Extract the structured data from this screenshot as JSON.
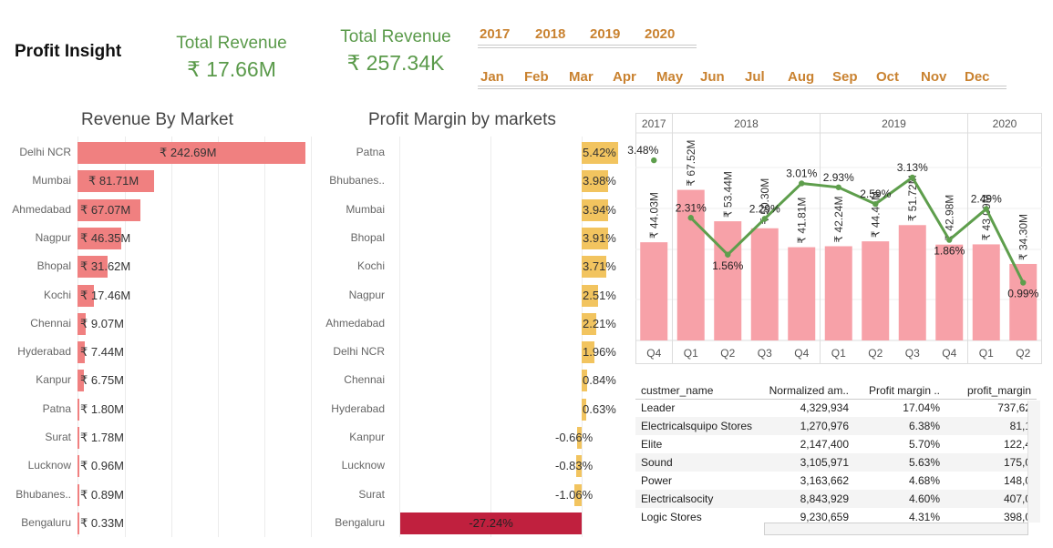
{
  "header": {
    "title": "Profit Insight",
    "kpis": [
      {
        "label": "Total Revenue",
        "value": "₹ 17.66M"
      },
      {
        "label": "Total Revenue",
        "value": "₹ 257.34K"
      }
    ]
  },
  "filters": {
    "years": [
      "2017",
      "2018",
      "2019",
      "2020"
    ],
    "months": [
      "Jan",
      "Feb",
      "Mar",
      "Apr",
      "May",
      "Jun",
      "Jul",
      "Aug",
      "Sep",
      "Oct",
      "Nov",
      "Dec"
    ]
  },
  "revenue_by_market": {
    "title": "Revenue By Market",
    "color": "#f08080",
    "markets": [
      "Delhi NCR",
      "Mumbai",
      "Ahmedabad",
      "Nagpur",
      "Bhopal",
      "Kochi",
      "Chennai",
      "Hyderabad",
      "Kanpur",
      "Patna",
      "Surat",
      "Lucknow",
      "Bhubanes..",
      "Bengaluru"
    ],
    "values": [
      242.69,
      81.71,
      67.07,
      46.35,
      31.62,
      17.46,
      9.07,
      7.44,
      6.75,
      1.8,
      1.78,
      0.96,
      0.89,
      0.33
    ],
    "labels": [
      "₹ 242.69M",
      "₹ 81.71M",
      "₹ 67.07M",
      "₹ 46.35M",
      "₹ 31.62M",
      "₹ 17.46M",
      "₹ 9.07M",
      "₹ 7.44M",
      "₹ 6.75M",
      "₹ 1.80M",
      "₹ 1.78M",
      "₹ 0.96M",
      "₹ 0.89M",
      "₹ 0.33M"
    ]
  },
  "profit_margin_by_markets": {
    "title": "Profit Margin by markets",
    "positive_color": "#f2c45f",
    "negative_color": "#c0203e",
    "markets": [
      "Patna",
      "Bhubanes..",
      "Mumbai",
      "Bhopal",
      "Kochi",
      "Nagpur",
      "Ahmedabad",
      "Delhi NCR",
      "Chennai",
      "Hyderabad",
      "Kanpur",
      "Lucknow",
      "Surat",
      "Bengaluru"
    ],
    "values": [
      5.42,
      3.98,
      3.94,
      3.91,
      3.71,
      2.51,
      2.21,
      1.96,
      0.84,
      0.63,
      -0.66,
      -0.83,
      -1.06,
      -27.24
    ],
    "labels": [
      "5.42%",
      "3.98%",
      "3.94%",
      "3.91%",
      "3.71%",
      "2.51%",
      "2.21%",
      "1.96%",
      "0.84%",
      "0.63%",
      "-0.66%",
      "-0.83%",
      "-1.06%",
      "-27.24%"
    ]
  },
  "combo_chart": {
    "bar_color": "#f7a1a8",
    "line_color": "#5e9e4c",
    "year_groups": [
      "2017",
      "2018",
      "2019",
      "2020"
    ],
    "year_spans": [
      1,
      4,
      4,
      2
    ],
    "quarters": [
      "Q4",
      "Q1",
      "Q2",
      "Q3",
      "Q4",
      "Q1",
      "Q2",
      "Q3",
      "Q4",
      "Q1",
      "Q2"
    ],
    "revenue": [
      44.03,
      67.52,
      53.44,
      50.3,
      41.81,
      42.24,
      44.44,
      51.72,
      42.98,
      43.09,
      34.3
    ],
    "revenue_labels": [
      "₹ 44.03M",
      "₹ 67.52M",
      "₹ 53.44M",
      "₹ 50.30M",
      "₹ 41.81M",
      "₹ 42.24M",
      "₹ 44.44M",
      "₹ 51.72M",
      "₹ 42.98M",
      "₹ 43.09M",
      "₹ 34.30M"
    ],
    "margin": [
      3.48,
      2.31,
      1.56,
      2.29,
      3.01,
      2.93,
      2.59,
      3.13,
      1.86,
      2.49,
      0.99
    ],
    "margin_labels": [
      "3.48%",
      "2.31%",
      "1.56%",
      "2.29%",
      "3.01%",
      "2.93%",
      "2.59%",
      "3.13%",
      "1.86%",
      "2.49%",
      "0.99%"
    ]
  },
  "customer_table": {
    "columns": [
      "custmer_name",
      "Normalized am..",
      "Profit margin ..",
      "profit_margin"
    ],
    "rows": [
      [
        "Leader",
        "4,329,934",
        "17.04%",
        "737,62"
      ],
      [
        "Electricalsquipo Stores",
        "1,270,976",
        "6.38%",
        "81,1"
      ],
      [
        "Elite",
        "2,147,400",
        "5.70%",
        "122,4"
      ],
      [
        "Sound",
        "3,105,971",
        "5.63%",
        "175,0"
      ],
      [
        "Power",
        "3,163,662",
        "4.68%",
        "148,0"
      ],
      [
        "Electricalsocity",
        "8,843,929",
        "4.60%",
        "407,0"
      ],
      [
        "Logic Stores",
        "9,230,659",
        "4.31%",
        "398,0"
      ]
    ]
  }
}
